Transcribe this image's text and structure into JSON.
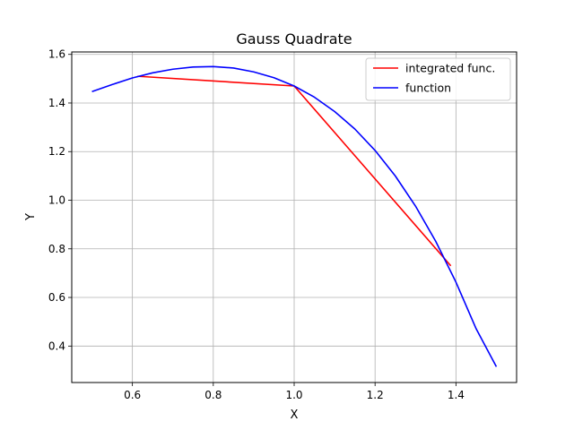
{
  "chart_data": {
    "type": "line",
    "title": "Gauss Quadrate",
    "xlabel": "X",
    "ylabel": "Y",
    "xlim": [
      0.45,
      1.55
    ],
    "ylim": [
      0.25,
      1.61
    ],
    "xticks": [
      0.6,
      0.8,
      1.0,
      1.2,
      1.4
    ],
    "xtick_labels": [
      "0.6",
      "0.8",
      "1.0",
      "1.2",
      "1.4"
    ],
    "yticks": [
      0.4,
      0.6,
      0.8,
      1.0,
      1.2,
      1.4,
      1.6
    ],
    "ytick_labels": [
      "0.4",
      "0.6",
      "0.8",
      "1.0",
      "1.2",
      "1.4",
      "1.6"
    ],
    "grid": true,
    "legend_position": "upper right",
    "series": [
      {
        "name": "integrated func.",
        "color": "#ff0000",
        "x": [
          0.6127,
          1.0,
          1.3873
        ],
        "y": [
          1.51,
          1.47,
          0.73
        ]
      },
      {
        "name": "function",
        "color": "#0000ff",
        "x": [
          0.5,
          0.55,
          0.6,
          0.65,
          0.7,
          0.75,
          0.8,
          0.85,
          0.9,
          0.95,
          1.0,
          1.05,
          1.1,
          1.15,
          1.2,
          1.25,
          1.3,
          1.35,
          1.4,
          1.45,
          1.5
        ],
        "y": [
          1.447,
          1.476,
          1.503,
          1.524,
          1.539,
          1.548,
          1.55,
          1.544,
          1.528,
          1.504,
          1.47,
          1.424,
          1.365,
          1.293,
          1.205,
          1.1,
          0.976,
          0.831,
          0.663,
          0.471,
          0.315
        ]
      }
    ]
  }
}
